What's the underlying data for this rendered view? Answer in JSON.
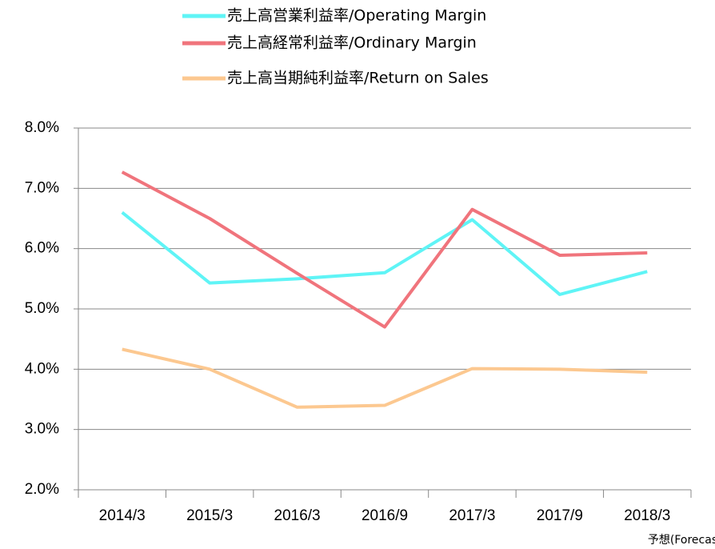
{
  "chart_data": {
    "type": "line",
    "categories": [
      "2014/3",
      "2015/3",
      "2016/3",
      "2016/9",
      "2017/3",
      "2017/9",
      "2018/3"
    ],
    "annotation": "予想(Forecast)",
    "series": [
      {
        "name": "売上高営業利益率/Operating Margin",
        "color": "#5ff4f6",
        "values": [
          6.6,
          5.43,
          5.5,
          5.6,
          6.48,
          5.24,
          5.62
        ]
      },
      {
        "name": "売上高経常利益率/Ordinary Margin",
        "color": "#f0747c",
        "values": [
          7.27,
          6.5,
          5.59,
          4.7,
          6.65,
          5.89,
          5.93
        ]
      },
      {
        "name": "売上高当期純利益率/Return on Sales",
        "color": "#fcc890",
        "values": [
          4.33,
          4.0,
          3.37,
          3.4,
          4.01,
          4.0,
          3.95
        ]
      }
    ],
    "ylim": [
      2,
      8
    ],
    "yticks": [
      {
        "value": 2,
        "label": "2.0%"
      },
      {
        "value": 3,
        "label": "3.0%"
      },
      {
        "value": 4,
        "label": "4.0%"
      },
      {
        "value": 5,
        "label": "5.0%"
      },
      {
        "value": 6,
        "label": "6.0%"
      },
      {
        "value": 7,
        "label": "7.0%"
      },
      {
        "value": 8,
        "label": "8.0%"
      }
    ],
    "grid": true,
    "legend": "top"
  }
}
